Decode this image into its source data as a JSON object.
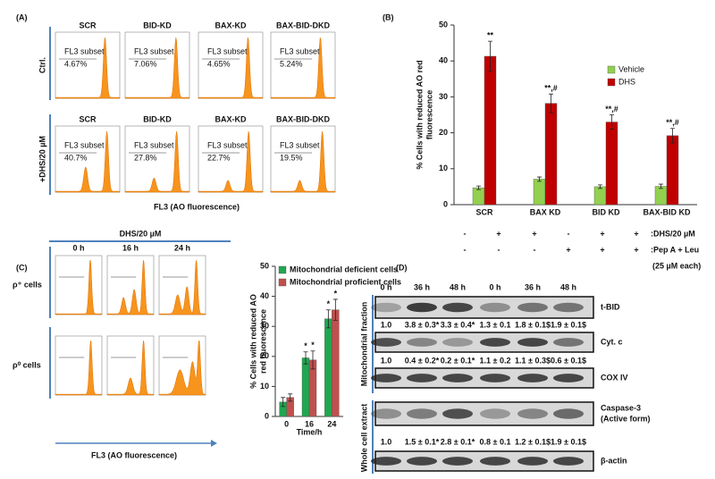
{
  "panel_a": {
    "label": "(A)",
    "columns": [
      "SCR",
      "BID-KD",
      "BAX-KD",
      "BAX-BID-DKD"
    ],
    "rows": [
      "Ctrl.",
      "+DHS/20 µM"
    ],
    "gate_label": "FL3 subset",
    "gate_values": [
      [
        "4.67%",
        "7.06%",
        "4.65%",
        "5.24%"
      ],
      [
        "40.7%",
        "27.8%",
        "22.7%",
        "19.5%"
      ]
    ],
    "x_label": "FL3 (AO fluorescence)"
  },
  "panel_c_flow": {
    "label": "(C)",
    "treatment": "DHS/20 µM",
    "columns": [
      "0 h",
      "16 h",
      "24 h"
    ],
    "rows": [
      "ρ⁺ cells",
      "ρ⁰ cells"
    ],
    "x_label": "FL3 (AO fluorescence)"
  },
  "panel_d": {
    "label": "(D)",
    "treatments": [
      {
        "signs": [
          "-",
          "+",
          "+",
          "-",
          "+",
          "+"
        ],
        "label": ":DHS/20 µM"
      },
      {
        "signs": [
          "-",
          "-",
          "-",
          "+",
          "+",
          "+"
        ],
        "label": ":Pep A + Leu"
      }
    ],
    "treatment_note": "(25 µM each)",
    "times": [
      "0 h",
      "36 h",
      "48 h",
      "0 h",
      "36 h",
      "48 h"
    ],
    "fractions": [
      "Mitochondrial  fraction",
      "Whole cell extract"
    ],
    "blots": [
      {
        "name": [
          "t-BID"
        ],
        "quant": [
          "1.0",
          "3.8 ± 0.3*",
          "3.3 ± 0.4*",
          "1.3 ± 0.1",
          "1.8 ± 0.1$",
          "1.9 ± 0.1$"
        ]
      },
      {
        "name": [
          "Cyt. c"
        ],
        "quant": [
          "1.0",
          "0.4 ± 0.2*",
          "0.2 ± 0.1*",
          "1.1 ± 0.2",
          "1.1 ± 0.3$",
          "0.6 ± 0.1$"
        ]
      },
      {
        "name": [
          "COX IV"
        ]
      },
      {
        "name": [
          "Caspase-3",
          "(Active form)"
        ],
        "quant": [
          "1.0",
          "1.5 ± 0.1*",
          "2.8 ± 0.1*",
          "0.8 ± 0.1",
          "1.2 ± 0.1$",
          "1.9 ± 0.1$"
        ]
      },
      {
        "name": [
          "β-actin"
        ]
      }
    ]
  },
  "chart_data": [
    {
      "type": "bar",
      "panel_label": "(B)",
      "y_label": [
        "% Cells with reduced AO red",
        "fluorescence"
      ],
      "categories": [
        "SCR",
        "BAX KD",
        "BID KD",
        "BAX-BID KD"
      ],
      "series": [
        {
          "name": "Vehicle",
          "color": "#92d050",
          "values": [
            4.7,
            7.1,
            5.0,
            5.1
          ],
          "errors": [
            0.5,
            0.6,
            0.5,
            0.6
          ]
        },
        {
          "name": "DHS",
          "color": "#c00000",
          "values": [
            41.3,
            28.2,
            23.0,
            19.2
          ],
          "errors": [
            4.2,
            2.6,
            2.0,
            2.0
          ],
          "sig_labels": [
            "**",
            "**,#",
            "**,#",
            "**,#"
          ]
        }
      ],
      "ylim": [
        0,
        50
      ],
      "yticks": [
        0,
        10,
        20,
        30,
        40,
        50
      ],
      "legend": "upper right"
    },
    {
      "type": "bar",
      "y_label": [
        "% Cells with reduced AO",
        "red fluorescence"
      ],
      "x_label": "Time/h",
      "categories": [
        "0",
        "16",
        "24"
      ],
      "series": [
        {
          "name": "Mitochondrial deficient cells",
          "color": "#22a650",
          "values": [
            4.8,
            19.5,
            32.5
          ],
          "errors": [
            1.5,
            2.0,
            3.0
          ],
          "sig_labels": [
            null,
            "*",
            "*"
          ]
        },
        {
          "name": "Mitochondrial proficient cells",
          "color": "#c0504d",
          "values": [
            6.3,
            18.8,
            35.5
          ],
          "errors": [
            1.2,
            3.0,
            3.5
          ],
          "sig_labels": [
            null,
            "*",
            "*"
          ]
        }
      ],
      "ylim": [
        0,
        50
      ],
      "yticks": [
        0,
        10,
        20,
        30,
        40,
        50
      ],
      "legend": "upper left"
    }
  ]
}
